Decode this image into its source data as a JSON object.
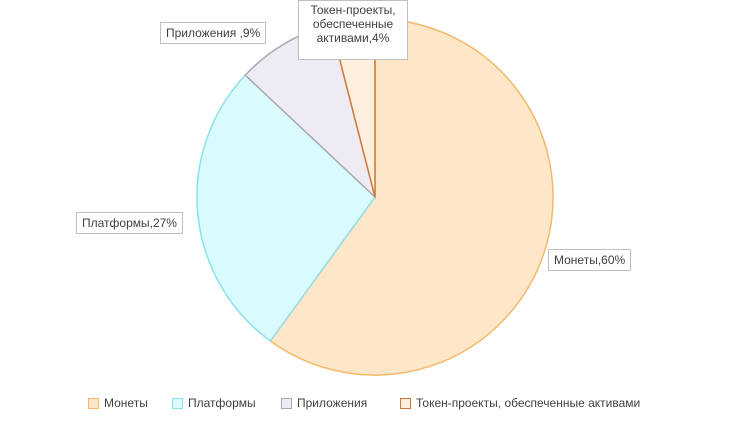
{
  "chart_data": {
    "type": "pie",
    "categories": [
      "Монеты",
      "Платформы",
      "Приложения",
      "Токен-проекты, обеспеченные активами"
    ],
    "values": [
      60,
      27,
      9,
      4
    ],
    "value_labels": [
      "Монеты,60%",
      "Платформы,27%",
      "Приложения ,9%",
      "Токен-проекты, обеспеченные активами,4%"
    ],
    "colors": [
      "#f6b868",
      "#8de0ea",
      "#a8a8b0",
      "#cc7a3a"
    ],
    "fills": [
      "#fde7c8",
      "#dafbfd",
      "#efebf5",
      "#fdeedd"
    ],
    "legend": "bottom"
  }
}
